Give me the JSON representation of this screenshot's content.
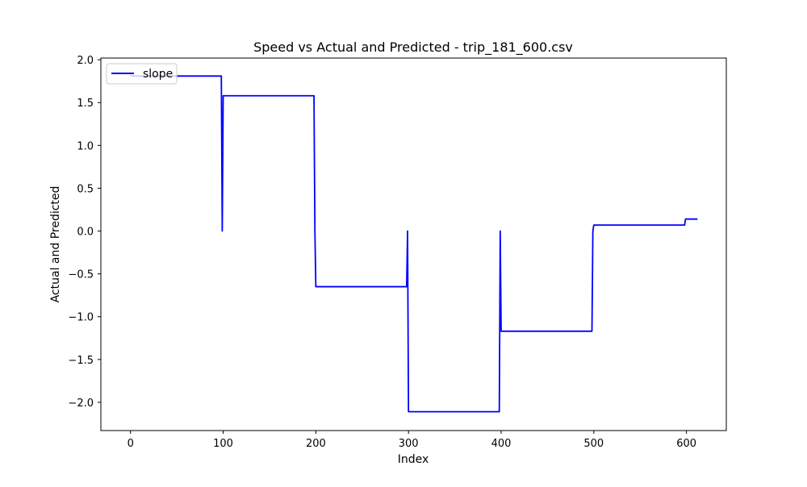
{
  "chart_data": {
    "type": "line",
    "title": "Speed vs Actual and Predicted - trip_181_600.csv",
    "xlabel": "Index",
    "ylabel": "Actual and Predicted",
    "xlim": [
      -32,
      643
    ],
    "ylim": [
      -2.33,
      2.02
    ],
    "xticks": [
      0,
      100,
      200,
      300,
      400,
      500,
      600
    ],
    "yticks": [
      -2.0,
      -1.5,
      -1.0,
      -0.5,
      0.0,
      0.5,
      1.0,
      1.5,
      2.0
    ],
    "xtick_labels": [
      "0",
      "100",
      "200",
      "300",
      "400",
      "500",
      "600"
    ],
    "ytick_labels": [
      "−2.0",
      "−1.5",
      "−1.0",
      "−0.5",
      "0.0",
      "0.5",
      "1.0",
      "1.5",
      "2.0"
    ],
    "grid": false,
    "legend_position": "upper left",
    "series": [
      {
        "name": "slope",
        "color": "#0000ff",
        "x": [
          0,
          98,
          99,
          100,
          101,
          198,
          199,
          200,
          201,
          298,
          299,
          300,
          301,
          398,
          399,
          400,
          401,
          498,
          499,
          500,
          501,
          598,
          599,
          600,
          612
        ],
        "y": [
          1.81,
          1.81,
          0.0,
          1.58,
          1.58,
          1.58,
          0.0,
          -0.65,
          -0.65,
          -0.65,
          0.0,
          -2.11,
          -2.11,
          -2.11,
          0.0,
          -1.17,
          -1.17,
          -1.17,
          0.0,
          0.07,
          0.07,
          0.07,
          0.14,
          0.14,
          0.14
        ]
      }
    ]
  }
}
